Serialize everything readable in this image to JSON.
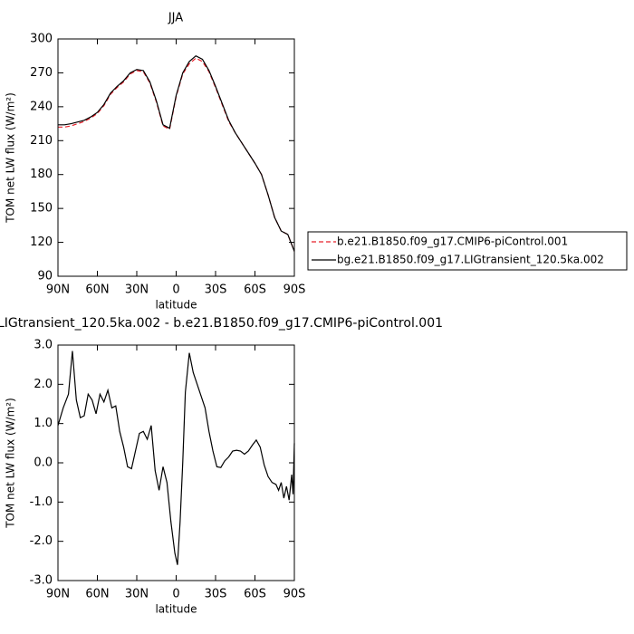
{
  "chart_data": [
    {
      "type": "line",
      "title": "JJA",
      "xlabel": "latitude",
      "ylabel": "TOM net LW flux (W/m²)",
      "x": [
        90,
        85,
        80,
        75,
        70,
        65,
        60,
        55,
        50,
        45,
        40,
        35,
        30,
        25,
        20,
        15,
        10,
        5,
        0,
        -5,
        -10,
        -15,
        -20,
        -25,
        -30,
        -35,
        -40,
        -45,
        -50,
        -55,
        -60,
        -65,
        -70,
        -75,
        -80,
        -85,
        -90
      ],
      "series": [
        {
          "name": "b.e21.B1850.f09_g17.CMIP6-piControl.001",
          "color": "#e8202a",
          "line_style": "dashed",
          "values": [
            222,
            222,
            223,
            225,
            227,
            230,
            234,
            241,
            251,
            257,
            262,
            269,
            272,
            271,
            261,
            244,
            223,
            220,
            249,
            269,
            278,
            283,
            280,
            271,
            257,
            242,
            227,
            217,
            208,
            199,
            190,
            180,
            162,
            142,
            130,
            127,
            112
          ]
        },
        {
          "name": "bg.e21.B1850.f09_g17.LIGtransient_120.5ka.002",
          "color": "#000000",
          "line_style": "solid",
          "values": [
            224,
            224,
            225,
            226.5,
            228,
            231,
            235,
            242,
            252,
            258,
            263,
            270,
            273,
            272,
            262,
            245,
            224,
            221,
            250,
            270,
            280,
            285,
            282,
            272,
            258,
            243,
            228,
            217,
            208,
            199,
            190,
            180,
            162,
            142,
            130,
            127,
            112
          ]
        }
      ],
      "xlim": [
        90,
        -90
      ],
      "xticks": [
        {
          "value": 90,
          "label": "90N"
        },
        {
          "value": 60,
          "label": "60N"
        },
        {
          "value": 30,
          "label": "30N"
        },
        0,
        {
          "value": -30,
          "label": "30S"
        },
        {
          "value": -60,
          "label": "60S"
        },
        {
          "value": -90,
          "label": "90S"
        }
      ],
      "ylim": [
        90,
        300
      ],
      "yticks": [
        90,
        120,
        150,
        180,
        210,
        240,
        270,
        300
      ]
    },
    {
      "type": "line",
      "title": "LIGtransient_120.5ka.002 - b.e21.B1850.f09_g17.CMIP6-piControl.001",
      "xlabel": "latitude",
      "ylabel": "TOM net LW flux (W/m²)",
      "x": [
        90,
        86,
        82,
        79,
        76,
        73,
        70,
        67,
        64,
        61,
        58,
        55,
        52,
        49,
        46,
        43,
        40,
        37,
        34,
        31,
        28,
        25,
        22,
        19,
        16,
        13,
        10,
        7,
        4,
        1,
        -1,
        -3,
        -5,
        -7,
        -10,
        -13,
        -16,
        -19,
        -22,
        -25,
        -28,
        -31,
        -34,
        -37,
        -40,
        -43,
        -46,
        -49,
        -52,
        -55,
        -58,
        -61,
        -64,
        -67,
        -70,
        -73,
        -76,
        -78,
        -80,
        -82,
        -84,
        -86,
        -88,
        -89,
        -90
      ],
      "values": [
        0.95,
        1.4,
        1.75,
        2.85,
        1.6,
        1.15,
        1.2,
        1.75,
        1.6,
        1.25,
        1.75,
        1.55,
        1.85,
        1.4,
        1.45,
        0.8,
        0.4,
        -0.1,
        -0.15,
        0.3,
        0.75,
        0.8,
        0.6,
        0.95,
        -0.2,
        -0.7,
        -0.1,
        -0.5,
        -1.5,
        -2.3,
        -2.6,
        -1.5,
        0,
        1.8,
        2.8,
        2.3,
        2.0,
        1.7,
        1.4,
        0.8,
        0.3,
        -0.1,
        -0.12,
        0.05,
        0.15,
        0.3,
        0.32,
        0.3,
        0.22,
        0.3,
        0.45,
        0.58,
        0.4,
        -0.05,
        -0.35,
        -0.5,
        -0.55,
        -0.7,
        -0.5,
        -0.9,
        -0.6,
        -0.95,
        -0.3,
        -0.8,
        0.5
      ],
      "color": "#000000",
      "xlim": [
        90,
        -90
      ],
      "xticks": [
        {
          "value": 90,
          "label": "90N"
        },
        {
          "value": 60,
          "label": "60N"
        },
        {
          "value": 30,
          "label": "30N"
        },
        0,
        {
          "value": -30,
          "label": "30S"
        },
        {
          "value": -60,
          "label": "60S"
        },
        {
          "value": -90,
          "label": "90S"
        }
      ],
      "ylim": [
        -3,
        3
      ],
      "yticks": [
        {
          "value": -3,
          "label": "-3.0"
        },
        {
          "value": -2,
          "label": "-2.0"
        },
        {
          "value": -1,
          "label": "-1.0"
        },
        {
          "value": 0,
          "label": "0.0"
        },
        {
          "value": 1,
          "label": "1.0"
        },
        {
          "value": 2,
          "label": "2.0"
        },
        {
          "value": 3,
          "label": "3.0"
        }
      ]
    }
  ]
}
